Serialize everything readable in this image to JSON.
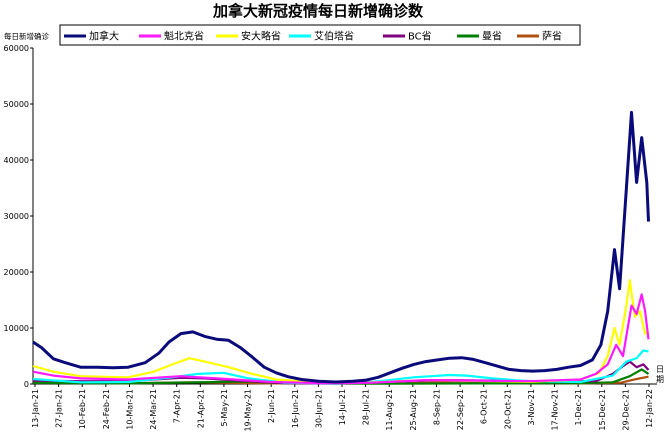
{
  "chart_data": {
    "type": "line",
    "title": "加拿大新冠疫情每日新增确诊数",
    "ylabel": "每日新增确诊",
    "xlabel": "日期",
    "ylim": [
      0,
      60000
    ],
    "yticks": [
      0,
      10000,
      20000,
      30000,
      40000,
      50000,
      60000
    ],
    "x_range": [
      "2021-01-13",
      "2022-01-15"
    ],
    "x_tick_labels": [
      "13-Jan-21",
      "27-Jan-21",
      "10-Feb-21",
      "24-Feb-21",
      "10-Mar-21",
      "24-Mar-21",
      "7-Apr-21",
      "21-Apr-21",
      "5-May-21",
      "19-May-21",
      "2-Jun-21",
      "16-Jun-21",
      "30-Jun-21",
      "14-Jul-21",
      "28-Jul-21",
      "11-Aug-21",
      "25-Aug-21",
      "8-Sep-21",
      "22-Sep-21",
      "6-Oct-21",
      "20-Oct-21",
      "3-Nov-21",
      "17-Nov-21",
      "1-Dec-21",
      "15-Dec-21",
      "29-Dec-21",
      "12-Jan-22"
    ],
    "legend_position": "top",
    "grid": false,
    "series": [
      {
        "name": "加拿大",
        "color": "#0a0a7a",
        "points": [
          [
            "2021-01-13",
            7500
          ],
          [
            "2021-01-18",
            6500
          ],
          [
            "2021-01-25",
            4500
          ],
          [
            "2021-02-01",
            3800
          ],
          [
            "2021-02-10",
            3000
          ],
          [
            "2021-02-20",
            3000
          ],
          [
            "2021-03-01",
            2900
          ],
          [
            "2021-03-10",
            3000
          ],
          [
            "2021-03-20",
            3800
          ],
          [
            "2021-03-28",
            5500
          ],
          [
            "2021-04-03",
            7500
          ],
          [
            "2021-04-10",
            9000
          ],
          [
            "2021-04-17",
            9300
          ],
          [
            "2021-04-24",
            8500
          ],
          [
            "2021-05-01",
            8000
          ],
          [
            "2021-05-08",
            7800
          ],
          [
            "2021-05-15",
            6500
          ],
          [
            "2021-05-22",
            4800
          ],
          [
            "2021-05-29",
            3000
          ],
          [
            "2021-06-05",
            2000
          ],
          [
            "2021-06-12",
            1300
          ],
          [
            "2021-06-20",
            800
          ],
          [
            "2021-06-30",
            500
          ],
          [
            "2021-07-10",
            350
          ],
          [
            "2021-07-20",
            500
          ],
          [
            "2021-07-28",
            700
          ],
          [
            "2021-08-04",
            1200
          ],
          [
            "2021-08-11",
            2000
          ],
          [
            "2021-08-18",
            2800
          ],
          [
            "2021-08-25",
            3500
          ],
          [
            "2021-09-01",
            4000
          ],
          [
            "2021-09-08",
            4300
          ],
          [
            "2021-09-15",
            4600
          ],
          [
            "2021-09-22",
            4700
          ],
          [
            "2021-09-29",
            4400
          ],
          [
            "2021-10-06",
            3800
          ],
          [
            "2021-10-13",
            3200
          ],
          [
            "2021-10-20",
            2600
          ],
          [
            "2021-10-27",
            2400
          ],
          [
            "2021-11-03",
            2300
          ],
          [
            "2021-11-10",
            2400
          ],
          [
            "2021-11-17",
            2600
          ],
          [
            "2021-11-24",
            3000
          ],
          [
            "2021-12-01",
            3300
          ],
          [
            "2021-12-08",
            4300
          ],
          [
            "2021-12-13",
            7000
          ],
          [
            "2021-12-17",
            13000
          ],
          [
            "2021-12-21",
            24000
          ],
          [
            "2021-12-24",
            17000
          ],
          [
            "2021-12-28",
            35000
          ],
          [
            "2021-12-31",
            48500
          ],
          [
            "2022-01-03",
            36000
          ],
          [
            "2022-01-06",
            44000
          ],
          [
            "2022-01-09",
            36000
          ],
          [
            "2022-01-10",
            29000
          ]
        ]
      },
      {
        "name": "魁北克省",
        "color": "#ff1aff",
        "points": [
          [
            "2021-01-13",
            2200
          ],
          [
            "2021-01-25",
            1500
          ],
          [
            "2021-02-10",
            1000
          ],
          [
            "2021-03-10",
            800
          ],
          [
            "2021-04-10",
            1400
          ],
          [
            "2021-05-01",
            1000
          ],
          [
            "2021-06-01",
            400
          ],
          [
            "2021-07-01",
            150
          ],
          [
            "2021-08-01",
            250
          ],
          [
            "2021-09-01",
            700
          ],
          [
            "2021-10-01",
            600
          ],
          [
            "2021-11-01",
            500
          ],
          [
            "2021-12-01",
            800
          ],
          [
            "2021-12-10",
            1800
          ],
          [
            "2021-12-17",
            3500
          ],
          [
            "2021-12-22",
            7000
          ],
          [
            "2021-12-26",
            5000
          ],
          [
            "2021-12-31",
            14000
          ],
          [
            "2022-01-03",
            12500
          ],
          [
            "2022-01-06",
            16000
          ],
          [
            "2022-01-08",
            13000
          ],
          [
            "2022-01-10",
            8000
          ]
        ]
      },
      {
        "name": "安大略省",
        "color": "#ffff00",
        "points": [
          [
            "2021-01-13",
            3200
          ],
          [
            "2021-01-25",
            2200
          ],
          [
            "2021-02-10",
            1400
          ],
          [
            "2021-03-10",
            1200
          ],
          [
            "2021-03-25",
            2200
          ],
          [
            "2021-04-05",
            3500
          ],
          [
            "2021-04-15",
            4600
          ],
          [
            "2021-04-24",
            4000
          ],
          [
            "2021-05-08",
            3000
          ],
          [
            "2021-05-22",
            1800
          ],
          [
            "2021-06-05",
            800
          ],
          [
            "2021-07-01",
            250
          ],
          [
            "2021-08-01",
            300
          ],
          [
            "2021-09-01",
            700
          ],
          [
            "2021-10-01",
            550
          ],
          [
            "2021-11-01",
            400
          ],
          [
            "2021-12-01",
            800
          ],
          [
            "2021-12-12",
            2000
          ],
          [
            "2021-12-17",
            5000
          ],
          [
            "2021-12-21",
            10000
          ],
          [
            "2021-12-24",
            7000
          ],
          [
            "2021-12-28",
            14000
          ],
          [
            "2021-12-30",
            18500
          ],
          [
            "2022-01-02",
            12000
          ],
          [
            "2022-01-05",
            13000
          ],
          [
            "2022-01-08",
            9000
          ],
          [
            "2022-01-10",
            9500
          ]
        ]
      },
      {
        "name": "艾伯塔省",
        "color": "#00ffff",
        "points": [
          [
            "2021-01-13",
            900
          ],
          [
            "2021-02-10",
            300
          ],
          [
            "2021-03-10",
            350
          ],
          [
            "2021-04-05",
            1200
          ],
          [
            "2021-04-20",
            1800
          ],
          [
            "2021-05-05",
            2000
          ],
          [
            "2021-05-20",
            1000
          ],
          [
            "2021-06-10",
            250
          ],
          [
            "2021-07-10",
            100
          ],
          [
            "2021-08-01",
            400
          ],
          [
            "2021-08-25",
            1200
          ],
          [
            "2021-09-15",
            1600
          ],
          [
            "2021-09-25",
            1500
          ],
          [
            "2021-10-10",
            1000
          ],
          [
            "2021-11-01",
            500
          ],
          [
            "2021-12-01",
            350
          ],
          [
            "2021-12-20",
            1500
          ],
          [
            "2021-12-28",
            4000
          ],
          [
            "2022-01-03",
            4600
          ],
          [
            "2022-01-07",
            6000
          ],
          [
            "2022-01-10",
            5800
          ]
        ]
      },
      {
        "name": "BC省",
        "color": "#800080",
        "points": [
          [
            "2021-01-13",
            600
          ],
          [
            "2021-02-10",
            500
          ],
          [
            "2021-03-10",
            500
          ],
          [
            "2021-04-10",
            1100
          ],
          [
            "2021-04-24",
            1000
          ],
          [
            "2021-05-15",
            600
          ],
          [
            "2021-06-10",
            150
          ],
          [
            "2021-07-10",
            50
          ],
          [
            "2021-08-10",
            400
          ],
          [
            "2021-09-10",
            700
          ],
          [
            "2021-10-10",
            600
          ],
          [
            "2021-11-10",
            500
          ],
          [
            "2021-12-10",
            500
          ],
          [
            "2021-12-20",
            1800
          ],
          [
            "2021-12-26",
            3200
          ],
          [
            "2021-12-30",
            4000
          ],
          [
            "2022-01-03",
            3000
          ],
          [
            "2022-01-07",
            3500
          ],
          [
            "2022-01-10",
            2500
          ]
        ]
      },
      {
        "name": "曼省",
        "color": "#008000",
        "points": [
          [
            "2021-01-13",
            200
          ],
          [
            "2021-03-10",
            100
          ],
          [
            "2021-05-20",
            450
          ],
          [
            "2021-06-10",
            150
          ],
          [
            "2021-08-01",
            50
          ],
          [
            "2021-10-01",
            100
          ],
          [
            "2021-12-01",
            150
          ],
          [
            "2021-12-20",
            300
          ],
          [
            "2021-12-30",
            1400
          ],
          [
            "2022-01-06",
            2600
          ],
          [
            "2022-01-10",
            1800
          ]
        ]
      },
      {
        "name": "萨省",
        "color": "#b05010",
        "points": [
          [
            "2021-01-13",
            300
          ],
          [
            "2021-03-10",
            150
          ],
          [
            "2021-04-15",
            300
          ],
          [
            "2021-06-01",
            100
          ],
          [
            "2021-08-01",
            100
          ],
          [
            "2021-09-20",
            500
          ],
          [
            "2021-10-20",
            300
          ],
          [
            "2021-12-01",
            100
          ],
          [
            "2021-12-25",
            250
          ],
          [
            "2022-01-03",
            900
          ],
          [
            "2022-01-10",
            1300
          ]
        ]
      }
    ]
  }
}
